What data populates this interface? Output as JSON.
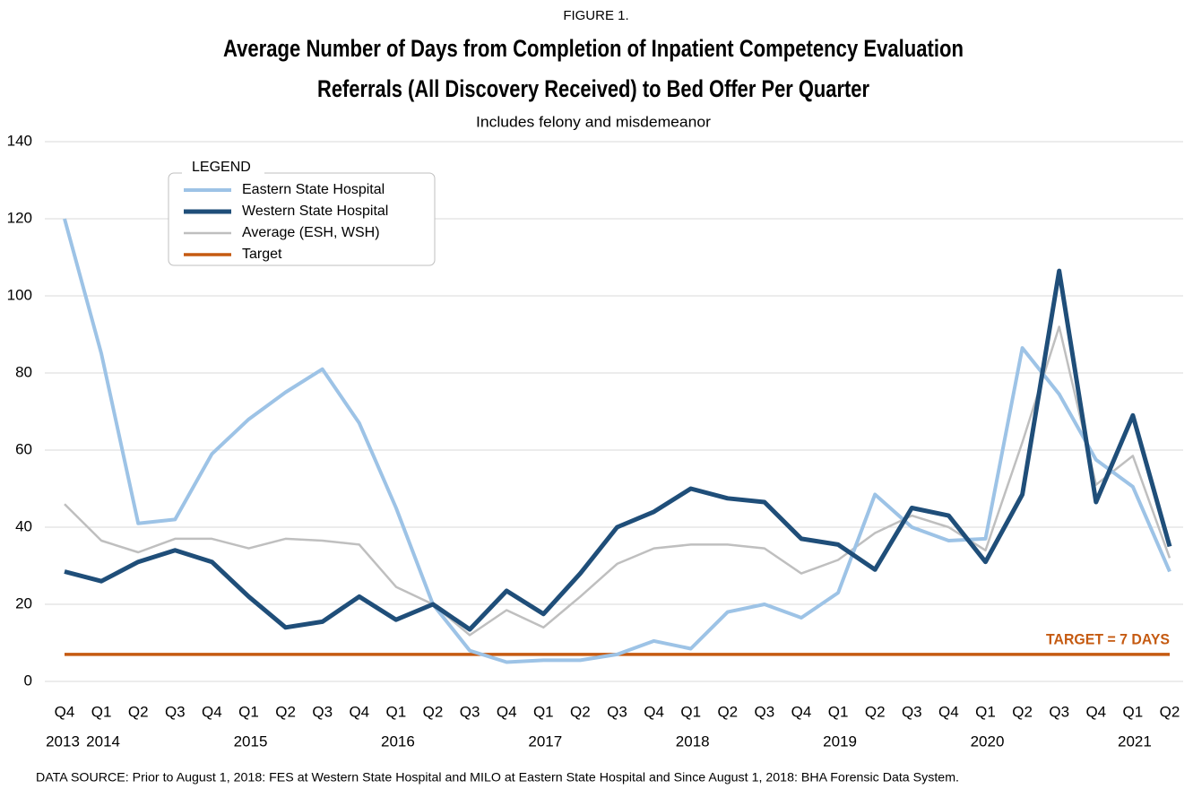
{
  "chart_data": {
    "type": "line",
    "figure_label": "FIGURE 1.",
    "title": [
      "Average Number of Days from Completion of Inpatient Competency Evaluation",
      "Referrals (All Discovery Received) to Bed Offer Per Quarter"
    ],
    "subtitle": "Includes felony and misdemeanor",
    "legend_title": "LEGEND",
    "legend_position": "upper left",
    "grid": true,
    "categories": [
      "Q4",
      "Q1",
      "Q2",
      "Q3",
      "Q4",
      "Q1",
      "Q2",
      "Q3",
      "Q4",
      "Q1",
      "Q2",
      "Q3",
      "Q4",
      "Q1",
      "Q2",
      "Q3",
      "Q4",
      "Q1",
      "Q2",
      "Q3",
      "Q4",
      "Q1",
      "Q2",
      "Q3",
      "Q4",
      "Q1",
      "Q2",
      "Q3",
      "Q4",
      "Q1",
      "Q2"
    ],
    "category_years": [
      "2013",
      "2014",
      null,
      null,
      null,
      "2015",
      null,
      null,
      null,
      "2016",
      null,
      null,
      null,
      "2017",
      null,
      null,
      null,
      "2018",
      null,
      null,
      null,
      "2019",
      null,
      null,
      null,
      "2020",
      null,
      null,
      null,
      "2021",
      null
    ],
    "ylim": [
      0,
      140
    ],
    "yticks": [
      0,
      20,
      40,
      60,
      80,
      100,
      120,
      140
    ],
    "series": [
      {
        "name": "Eastern State Hospital",
        "color": "#9dc3e6",
        "values": [
          120,
          85,
          41,
          42,
          59,
          68,
          75,
          81,
          67,
          45,
          20,
          8,
          5,
          5.5,
          5.5,
          7,
          10.5,
          8.5,
          18,
          20,
          16.5,
          23,
          48.5,
          40,
          36.5,
          37,
          86.5,
          74.5,
          57.5,
          50.5,
          28.5
        ]
      },
      {
        "name": "Western State Hospital",
        "color": "#1f4e79",
        "values": [
          28.5,
          26,
          31,
          34,
          31,
          22,
          14,
          15.5,
          22,
          16,
          20,
          13.5,
          23.5,
          17.5,
          28,
          40,
          44,
          50,
          47.5,
          46.5,
          37,
          35.5,
          29,
          45,
          43,
          31,
          48.5,
          106.5,
          46.5,
          69,
          35
        ]
      },
      {
        "name": "Average (ESH, WSH)",
        "color": "#bfbfbf",
        "values": [
          46,
          36.5,
          33.5,
          37,
          37,
          34.5,
          37,
          36.5,
          35.5,
          24.5,
          20,
          12,
          18.5,
          14,
          22,
          30.5,
          34.5,
          35.5,
          35.5,
          34.5,
          28,
          31.5,
          38.5,
          43,
          40,
          34,
          62,
          92,
          51,
          58.5,
          32
        ]
      },
      {
        "name": "Target",
        "color": "#c55a11",
        "values": [
          7,
          7,
          7,
          7,
          7,
          7,
          7,
          7,
          7,
          7,
          7,
          7,
          7,
          7,
          7,
          7,
          7,
          7,
          7,
          7,
          7,
          7,
          7,
          7,
          7,
          7,
          7,
          7,
          7,
          7,
          7
        ]
      }
    ],
    "annotation": {
      "text": "TARGET = 7 DAYS",
      "color": "#c55a11"
    },
    "source": "DATA SOURCE: Prior to August 1, 2018: FES at Western State Hospital and MILO at Eastern State Hospital and Since August 1, 2018: BHA Forensic Data System."
  }
}
